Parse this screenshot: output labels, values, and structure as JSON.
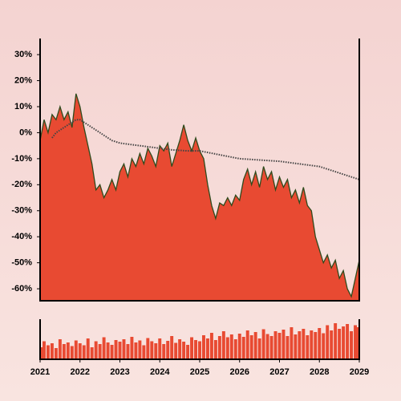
{
  "chart_data": [
    {
      "type": "area",
      "x": [
        2021.0,
        2021.1,
        2021.2,
        2021.3,
        2021.4,
        2021.5,
        2021.6,
        2021.7,
        2021.8,
        2021.9,
        2022.0,
        2022.1,
        2022.2,
        2022.3,
        2022.4,
        2022.5,
        2022.6,
        2022.7,
        2022.8,
        2022.9,
        2023.0,
        2023.1,
        2023.2,
        2023.3,
        2023.4,
        2023.5,
        2023.6,
        2023.7,
        2023.8,
        2023.9,
        2024.0,
        2024.1,
        2024.2,
        2024.3,
        2024.4,
        2024.5,
        2024.6,
        2024.7,
        2024.8,
        2024.9,
        2025.0,
        2025.1,
        2025.2,
        2025.3,
        2025.4,
        2025.5,
        2025.6,
        2025.7,
        2025.8,
        2025.9,
        2026.0,
        2026.1,
        2026.2,
        2026.3,
        2026.4,
        2026.5,
        2026.6,
        2026.7,
        2026.8,
        2026.9,
        2027.0,
        2027.1,
        2027.2,
        2027.3,
        2027.4,
        2027.5,
        2027.6,
        2027.7,
        2027.8,
        2027.9,
        2028.0,
        2028.1,
        2028.2,
        2028.3,
        2028.4,
        2028.5,
        2028.6,
        2028.7,
        2028.8,
        2028.9,
        2029.0
      ],
      "series": [
        {
          "color": "#e84a32",
          "line_color": "#2e4a1c",
          "values": [
            -3,
            5,
            0,
            7,
            5,
            10,
            5,
            8,
            2,
            15,
            10,
            2,
            -5,
            -12,
            -22,
            -20,
            -25,
            -22,
            -18,
            -22,
            -15,
            -12,
            -17,
            -10,
            -13,
            -8,
            -12,
            -6,
            -9,
            -13,
            -5,
            -7,
            -4,
            -13,
            -8,
            -3,
            3,
            -3,
            -7,
            -2,
            -7,
            -10,
            -20,
            -28,
            -33,
            -27,
            -28,
            -25,
            -28,
            -24,
            -26,
            -18,
            -14,
            -20,
            -15,
            -21,
            -13,
            -18,
            -15,
            -22,
            -17,
            -21,
            -18,
            -25,
            -22,
            -27,
            -21,
            -28,
            -30,
            -40,
            -45,
            -50,
            -47,
            -52,
            -49,
            -56,
            -53,
            -60,
            -63,
            -56,
            -49
          ]
        },
        {
          "color": "#444444",
          "style": "dotted",
          "values": [
            null,
            null,
            null,
            -2,
            0,
            1,
            2,
            3,
            4,
            5,
            5,
            4,
            3,
            2,
            1,
            0,
            -1,
            -2,
            -3,
            -3.5,
            -4,
            -4.2,
            -4.4,
            -4.6,
            -4.8,
            -5,
            -5.2,
            -5.4,
            -5.6,
            -5.8,
            -6,
            -6.2,
            -6.4,
            -6.6,
            -6.7,
            -6.8,
            -6.9,
            -7,
            -7,
            -7,
            -7,
            -7.3,
            -7.6,
            -7.9,
            -8.2,
            -8.5,
            -8.8,
            -9.1,
            -9.4,
            -9.7,
            -10,
            -10.1,
            -10.2,
            -10.3,
            -10.4,
            -10.5,
            -10.6,
            -10.7,
            -10.8,
            -10.9,
            -11,
            -11.2,
            -11.4,
            -11.6,
            -11.8,
            -12,
            -12.2,
            -12.4,
            -12.6,
            -12.8,
            -13,
            -13.5,
            -14,
            -14.5,
            -15,
            -15.5,
            -16,
            -16.5,
            -17,
            -17.5,
            -18
          ]
        }
      ],
      "xlim": [
        2021,
        2029
      ],
      "ylim": [
        -64.6,
        36.2
      ],
      "yticks": [
        {
          "value": 30,
          "label": "30%"
        },
        {
          "value": 20,
          "label": "20%"
        },
        {
          "value": 10,
          "label": "10%"
        },
        {
          "value": 0,
          "label": "0%"
        },
        {
          "value": -10,
          "label": "-10%"
        },
        {
          "value": -20,
          "label": "-20%"
        },
        {
          "value": -30,
          "label": "-30%"
        },
        {
          "value": -40,
          "label": "-40%"
        },
        {
          "value": -50,
          "label": "-50%"
        },
        {
          "value": -60,
          "label": "-60%"
        }
      ]
    },
    {
      "type": "bar",
      "x": [
        2021.0,
        2021.1,
        2021.2,
        2021.3,
        2021.4,
        2021.5,
        2021.6,
        2021.7,
        2021.8,
        2021.9,
        2022.0,
        2022.1,
        2022.2,
        2022.3,
        2022.4,
        2022.5,
        2022.6,
        2022.7,
        2022.8,
        2022.9,
        2023.0,
        2023.1,
        2023.2,
        2023.3,
        2023.4,
        2023.5,
        2023.6,
        2023.7,
        2023.8,
        2023.9,
        2024.0,
        2024.1,
        2024.2,
        2024.3,
        2024.4,
        2024.5,
        2024.6,
        2024.7,
        2024.8,
        2024.9,
        2025.0,
        2025.1,
        2025.2,
        2025.3,
        2025.4,
        2025.5,
        2025.6,
        2025.7,
        2025.8,
        2025.9,
        2026.0,
        2026.1,
        2026.2,
        2026.3,
        2026.4,
        2026.5,
        2026.6,
        2026.7,
        2026.8,
        2026.9,
        2027.0,
        2027.1,
        2027.2,
        2027.3,
        2027.4,
        2027.5,
        2027.6,
        2027.7,
        2027.8,
        2027.9,
        2028.0,
        2028.1,
        2028.2,
        2028.3,
        2028.4,
        2028.5,
        2028.6,
        2028.7,
        2028.8,
        2028.9,
        2029.0
      ],
      "values": [
        30,
        45,
        35,
        40,
        28,
        50,
        38,
        42,
        33,
        47,
        40,
        35,
        52,
        30,
        45,
        38,
        55,
        42,
        36,
        48,
        44,
        50,
        38,
        56,
        42,
        47,
        35,
        53,
        45,
        40,
        52,
        38,
        46,
        58,
        41,
        50,
        44,
        36,
        55,
        48,
        45,
        60,
        52,
        66,
        48,
        58,
        70,
        55,
        62,
        50,
        64,
        56,
        72,
        60,
        68,
        52,
        75,
        63,
        58,
        70,
        66,
        74,
        58,
        80,
        62,
        70,
        76,
        60,
        72,
        68,
        78,
        65,
        85,
        72,
        90,
        76,
        82,
        88,
        70,
        85,
        80
      ],
      "color": "#e84a32",
      "xlim": [
        2021,
        2029
      ],
      "ylim": [
        0,
        100
      ],
      "xticks": [
        2021,
        2022,
        2023,
        2024,
        2025,
        2026,
        2027,
        2028,
        2029
      ]
    }
  ]
}
